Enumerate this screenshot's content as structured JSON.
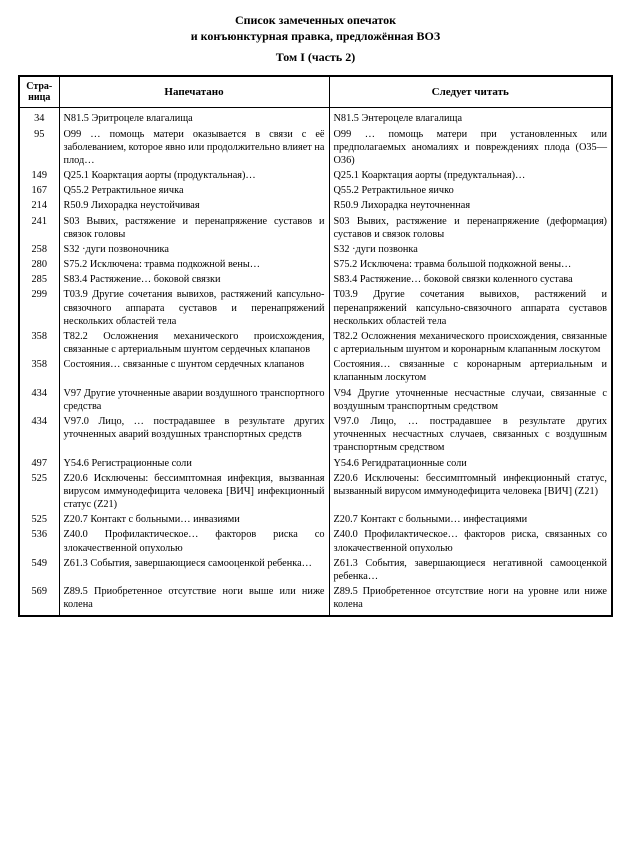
{
  "header": {
    "title_line1": "Список замеченных опечаток",
    "title_line2": "и конъюнктурная правка, предложённая ВОЗ",
    "subtitle": "Том I (часть 2)"
  },
  "table": {
    "columns": [
      "Стра-ница",
      "Напечатано",
      "Следует читать"
    ],
    "rows": [
      [
        "34",
        "N81.5 Эритроцеле влагалища",
        "N81.5 Энтероцеле влагалища"
      ],
      [
        "95",
        "O99 … помощь матери оказывается в связи с её заболеванием, которое явно или продолжительно влияет на плод…",
        "O99 … помощь матери при установленных или предполагаемых аномалиях и повреждениях плода (O35—O36)"
      ],
      [
        "149",
        "Q25.1 Коарктация аорты (продуктальная)…",
        "Q25.1 Коарктация аорты (предуктальная)…"
      ],
      [
        "167",
        "Q55.2 Ретрактильное яичка",
        "Q55.2 Ретрактильное яичко"
      ],
      [
        "214",
        "R50.9 Лихорадка неустойчивая",
        "R50.9 Лихорадка неуточненная"
      ],
      [
        "241",
        "S03 Вывих, растяжение и перенапряжение суставов и связок головы",
        "S03 Вывих, растяжение и перенапряжение (деформация) суставов и связок головы"
      ],
      [
        "258",
        "S32 ·дуги позвоночника",
        "S32 ·дуги позвонка"
      ],
      [
        "280",
        "S75.2 Исключена: травма подкожной вены…",
        "S75.2 Исключена: травма большой подкожной вены…"
      ],
      [
        "285",
        "S83.4 Растяжение… боковой связки",
        "S83.4 Растяжение… боковой связки коленного сустава"
      ],
      [
        "299",
        "T03.9 Другие сочетания вывихов, растяжений капсульно-связочного аппарата суставов и перенапряжений нескольких областей тела",
        "T03.9 Другие сочетания вывихов, растяжений и перенапряжений капсульно-связочного аппарата суставов нескольких областей тела"
      ],
      [
        "358",
        "T82.2 Осложнения механического происхождения, связанные с артериальным шунтом сердечных клапанов",
        "T82.2 Осложнения механического происхождения, связанные с артериальным шунтом и коронарным клапанным лоскутом"
      ],
      [
        "358",
        "Состояния… связанные с шунтом сердечных клапанов",
        "Состояния… связанные с коронарным артериальным и клапанным лоскутом"
      ],
      [
        "434",
        "V97 Другие уточненные аварии воздушного транспортного средства",
        "V94 Другие уточненные несчастные случаи, связанные с воздушным транспортным средством"
      ],
      [
        "434",
        "V97.0 Лицо, … пострадавшее в результате других уточненных аварий воздушных транспортных средств",
        "V97.0 Лицо, … пострадавшее в результате других уточненных несчастных случаев, связанных с воздушным транспортным средством"
      ],
      [
        "497",
        "Y54.6 Регистрационные соли",
        "Y54.6 Регидратационные соли"
      ],
      [
        "525",
        "Z20.6 Исключены: бессимптомная инфекция, вызванная вирусом иммунодефицита человека [ВИЧ] инфекционный статус (Z21)",
        "Z20.6 Исключены: бессимптомный инфекционный статус, вызванный вирусом иммунодефицита человека [ВИЧ] (Z21)"
      ],
      [
        "525",
        "Z20.7 Контакт с больными… инвазиями",
        "Z20.7 Контакт с больными… инфестациями"
      ],
      [
        "536",
        "Z40.0 Профилактическое… факторов риска со злокачественной опухолью",
        "Z40.0 Профилактическое… факторов риска, связанных со злокачественной опухолью"
      ],
      [
        "549",
        "Z61.3 События, завершающиеся самооценкой ребенка…",
        "Z61.3 События, завершающиеся негативной самооценкой ребенка…"
      ],
      [
        "569",
        "Z89.5 Приобретенное отсутствие ноги выше или ниже колена",
        "Z89.5 Приобретенное отсутствие ноги на уровне или ниже колена"
      ]
    ]
  }
}
